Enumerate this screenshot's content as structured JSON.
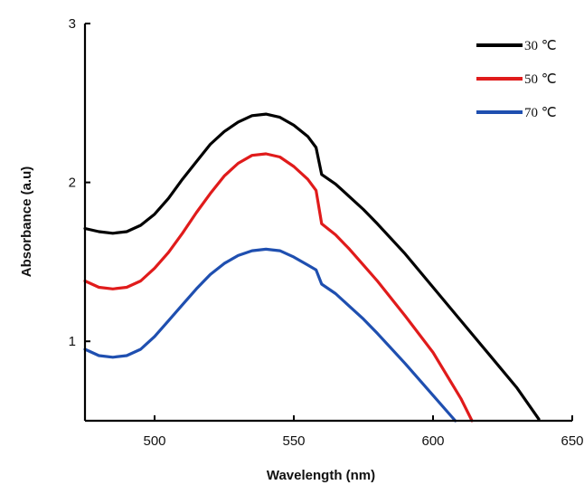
{
  "chart_data": {
    "type": "line",
    "xlabel": "Wavelength (nm)",
    "ylabel": "Absorbance (a.u)",
    "xlim": [
      475,
      650
    ],
    "ylim": [
      0.5,
      3
    ],
    "x_ticks": [
      "500",
      "550",
      "600",
      "650"
    ],
    "y_ticks": [
      "1",
      "2",
      "3"
    ],
    "x_tick_values": [
      500,
      550,
      600,
      650
    ],
    "y_tick_values": [
      1,
      2,
      3
    ],
    "grid": false,
    "legend_position": "top-right",
    "series": [
      {
        "name": "30 ℃",
        "color": "#000000",
        "x": [
          475,
          480,
          485,
          490,
          495,
          500,
          505,
          510,
          515,
          520,
          525,
          530,
          535,
          540,
          545,
          550,
          555,
          558,
          560,
          565,
          570,
          575,
          580,
          590,
          600,
          610,
          620,
          630,
          638
        ],
        "y": [
          1.71,
          1.69,
          1.68,
          1.69,
          1.73,
          1.8,
          1.9,
          2.02,
          2.13,
          2.24,
          2.32,
          2.38,
          2.42,
          2.43,
          2.41,
          2.36,
          2.29,
          2.22,
          2.05,
          1.99,
          1.91,
          1.83,
          1.74,
          1.55,
          1.34,
          1.13,
          0.92,
          0.71,
          0.51
        ]
      },
      {
        "name": "50 ℃",
        "color": "#e01b1b",
        "x": [
          475,
          480,
          485,
          490,
          495,
          500,
          505,
          510,
          515,
          520,
          525,
          530,
          535,
          540,
          545,
          550,
          555,
          558,
          560,
          565,
          570,
          575,
          580,
          590,
          600,
          610,
          614
        ],
        "y": [
          1.38,
          1.34,
          1.33,
          1.34,
          1.38,
          1.46,
          1.56,
          1.68,
          1.81,
          1.93,
          2.04,
          2.12,
          2.17,
          2.18,
          2.16,
          2.1,
          2.02,
          1.95,
          1.74,
          1.67,
          1.58,
          1.48,
          1.38,
          1.16,
          0.93,
          0.64,
          0.5
        ]
      },
      {
        "name": "70 ℃",
        "color": "#1f4fb0",
        "x": [
          475,
          480,
          485,
          490,
          495,
          500,
          505,
          510,
          515,
          520,
          525,
          530,
          535,
          540,
          545,
          550,
          555,
          558,
          560,
          565,
          570,
          575,
          580,
          590,
          600,
          608
        ],
        "y": [
          0.95,
          0.91,
          0.9,
          0.91,
          0.95,
          1.03,
          1.13,
          1.23,
          1.33,
          1.42,
          1.49,
          1.54,
          1.57,
          1.58,
          1.57,
          1.53,
          1.48,
          1.45,
          1.36,
          1.3,
          1.22,
          1.14,
          1.05,
          0.86,
          0.66,
          0.5
        ]
      }
    ]
  }
}
